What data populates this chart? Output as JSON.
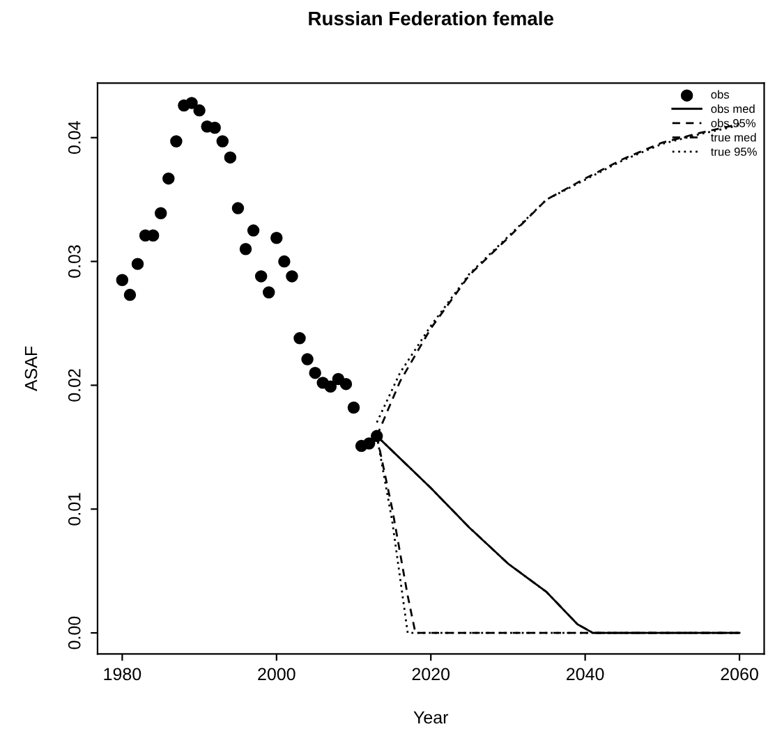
{
  "chart_data": {
    "type": "line",
    "title": "Russian Federation female",
    "xlabel": "Year",
    "ylabel": "ASAF",
    "xlim": [
      1976.8,
      2063.2
    ],
    "ylim": [
      -0.0017,
      0.0444
    ],
    "xticks": [
      1980,
      2000,
      2020,
      2040,
      2060
    ],
    "yticks": [
      {
        "value": 0,
        "label": "0.00"
      },
      {
        "value": 0.01,
        "label": "0.01"
      },
      {
        "value": 0.02,
        "label": "0.02"
      },
      {
        "value": 0.03,
        "label": "0.03"
      },
      {
        "value": 0.04,
        "label": "0.04"
      }
    ],
    "legend": "top right",
    "grid": false,
    "series": [
      {
        "name": "obs",
        "type": "scatter",
        "marker": "circle",
        "color": "#000000",
        "x": [
          1980,
          1981,
          1982,
          1983,
          1984,
          1985,
          1986,
          1987,
          1988,
          1989,
          1990,
          1991,
          1992,
          1993,
          1994,
          1995,
          1996,
          1997,
          1998,
          1999,
          2000,
          2001,
          2002,
          2003,
          2004,
          2005,
          2006,
          2007,
          2008,
          2009,
          2010,
          2011,
          2012,
          2013
        ],
        "values": [
          0.0285,
          0.0273,
          0.0298,
          0.0321,
          0.0321,
          0.0339,
          0.0367,
          0.0397,
          0.0426,
          0.0428,
          0.0422,
          0.0409,
          0.0408,
          0.0397,
          0.0384,
          0.0343,
          0.031,
          0.0325,
          0.0288,
          0.0275,
          0.0319,
          0.03,
          0.0288,
          0.0238,
          0.0221,
          0.021,
          0.0202,
          0.0199,
          0.0205,
          0.0201,
          0.0182,
          0.0151,
          0.0153,
          0.0159
        ]
      },
      {
        "name": "obs med",
        "line_style": "solid",
        "color": "#000000",
        "x": [
          2013,
          2020,
          2025,
          2030,
          2035,
          2039,
          2041,
          2060
        ],
        "values": [
          0.0159,
          0.0117,
          0.0085,
          0.0056,
          0.0033,
          0.0007,
          0,
          0
        ]
      },
      {
        "name": "obs 95%",
        "line_style": "dashed",
        "color": "#000000",
        "x": [
          2013,
          2016,
          2020,
          2025,
          2030,
          2035,
          2040,
          2045,
          2050,
          2055,
          2060
        ],
        "values": [
          0.0159,
          0.0203,
          0.0246,
          0.0289,
          0.0319,
          0.035,
          0.0367,
          0.0383,
          0.0396,
          0.0404,
          0.0411
        ]
      },
      {
        "line_style": "dashed",
        "color": "#000000",
        "x": [
          2013,
          2015,
          2017,
          2018,
          2060
        ],
        "values": [
          0.0159,
          0.01,
          0.003,
          0,
          0
        ]
      },
      {
        "name": "true med",
        "line_style": "dashdot",
        "color": "#000000",
        "x": [
          2013,
          2020,
          2025,
          2030,
          2035,
          2039,
          2041,
          2060
        ],
        "values": [
          0.0159,
          0.0117,
          0.0085,
          0.0056,
          0.0033,
          0.0007,
          0,
          0
        ]
      },
      {
        "name": "true 95%",
        "line_style": "dotted",
        "color": "#000000",
        "x": [
          2013,
          2016,
          2020,
          2025,
          2030,
          2035,
          2040,
          2045,
          2050,
          2055,
          2060
        ],
        "values": [
          0.017,
          0.021,
          0.0248,
          0.029,
          0.032,
          0.035,
          0.0366,
          0.0382,
          0.0395,
          0.0403,
          0.041
        ]
      },
      {
        "line_style": "dotted",
        "color": "#000000",
        "x": [
          2013,
          2015,
          2017,
          2060
        ],
        "values": [
          0.0159,
          0.009,
          0,
          0
        ]
      }
    ]
  }
}
